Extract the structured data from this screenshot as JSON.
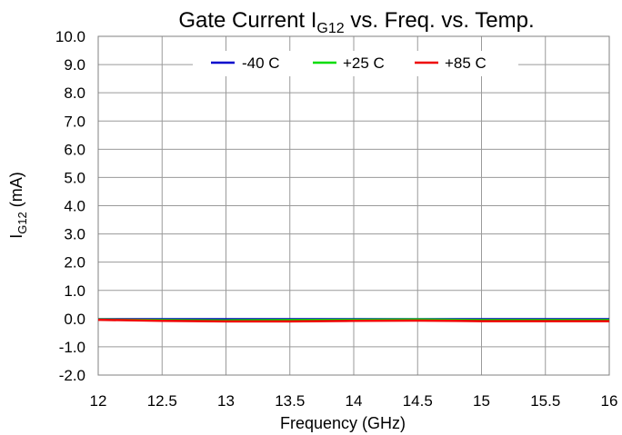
{
  "chart_data": {
    "type": "line",
    "title": {
      "main": "Gate Current I",
      "sub": "G12",
      "rest": " vs. Freq. vs. Temp."
    },
    "xlabel": "Frequency (GHz)",
    "ylabel": {
      "main": "I",
      "sub": "G12",
      "rest": " (mA)"
    },
    "xlim": [
      12,
      16
    ],
    "ylim": [
      -2.0,
      10.0
    ],
    "x_ticks": [
      "12",
      "12.5",
      "13",
      "13.5",
      "14",
      "14.5",
      "15",
      "15.5",
      "16"
    ],
    "y_ticks": [
      "10.0",
      "9.0",
      "8.0",
      "7.0",
      "6.0",
      "5.0",
      "4.0",
      "3.0",
      "2.0",
      "1.0",
      "0.0",
      "-1.0",
      "-2.0"
    ],
    "grid": true,
    "legend_position": "top-center",
    "x": [
      12,
      12.5,
      13,
      13.5,
      14,
      14.5,
      15,
      15.5,
      16
    ],
    "series": [
      {
        "name": "-40 C",
        "color": "#0000cc",
        "values": [
          -0.02,
          -0.02,
          -0.02,
          -0.02,
          -0.02,
          -0.02,
          -0.02,
          -0.02,
          -0.02
        ]
      },
      {
        "name": "+25 C",
        "color": "#00dd00",
        "values": [
          -0.03,
          -0.05,
          -0.06,
          -0.05,
          -0.04,
          -0.03,
          -0.05,
          -0.05,
          -0.05
        ]
      },
      {
        "name": "+85 C",
        "color": "#ee0000",
        "values": [
          -0.04,
          -0.08,
          -0.1,
          -0.1,
          -0.08,
          -0.07,
          -0.09,
          -0.09,
          -0.09
        ]
      }
    ]
  }
}
